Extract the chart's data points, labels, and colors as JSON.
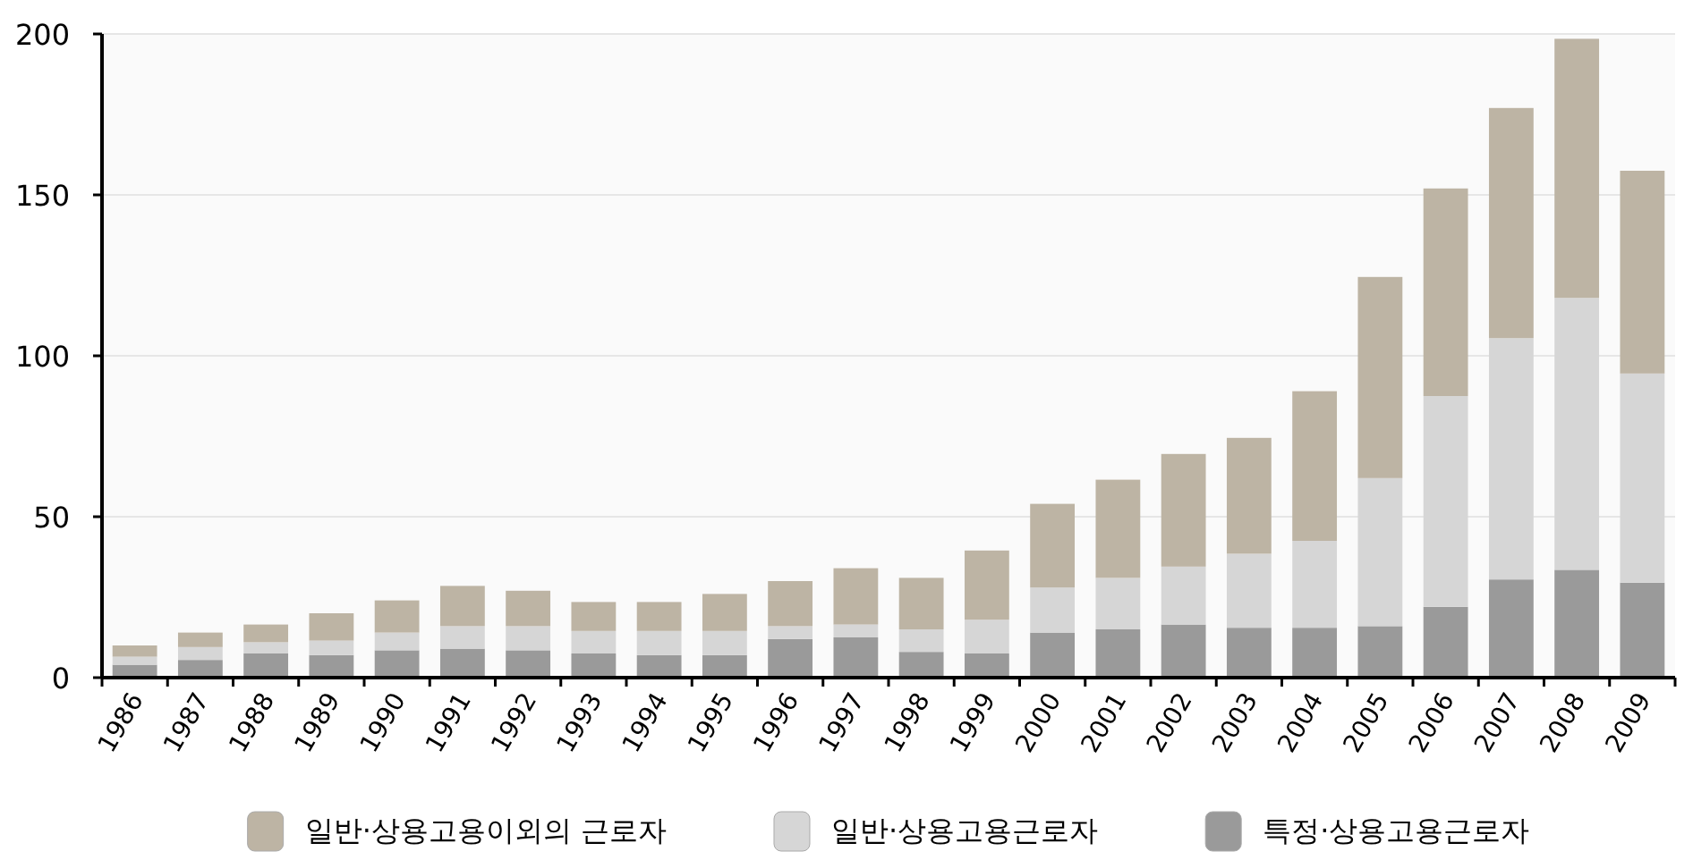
{
  "chart_data": {
    "type": "bar",
    "stacked": true,
    "categories": [
      "1986",
      "1987",
      "1988",
      "1989",
      "1990",
      "1991",
      "1992",
      "1993",
      "1994",
      "1995",
      "1996",
      "1997",
      "1998",
      "1999",
      "2000",
      "2001",
      "2002",
      "2003",
      "2004",
      "2005",
      "2006",
      "2007",
      "2008",
      "2009"
    ],
    "series": [
      {
        "name": "특정·상용고용근로자",
        "color": "#9a9a9a",
        "values": [
          4,
          5.5,
          7.5,
          7,
          8.5,
          9,
          8.5,
          7.5,
          7,
          7,
          12,
          12.5,
          8,
          7.5,
          14,
          15,
          16.5,
          15.5,
          15.5,
          16,
          22,
          30.5,
          33.5,
          29.5
        ]
      },
      {
        "name": "일반·상용고용근로자",
        "color": "#d6d6d6",
        "values": [
          2.5,
          4,
          3.5,
          4.5,
          5.5,
          7,
          7.5,
          7,
          7.5,
          7.5,
          4,
          4,
          7,
          10.5,
          14,
          16,
          18,
          23,
          27,
          46,
          65.5,
          75,
          84.5,
          65
        ]
      },
      {
        "name": "일반·상용고용이외의 근로자",
        "color": "#bdb4a4",
        "values": [
          3.5,
          4.5,
          5.5,
          8.5,
          10,
          12.5,
          11,
          9,
          9,
          11.5,
          14,
          17.5,
          16,
          21.5,
          26,
          30.5,
          35,
          36,
          46.5,
          62.5,
          64.5,
          71.5,
          80.5,
          63
        ]
      }
    ],
    "ylim": [
      0,
      200
    ],
    "yticks": [
      0,
      50,
      100,
      150,
      200
    ],
    "grid": "y",
    "legend": "bottom"
  }
}
